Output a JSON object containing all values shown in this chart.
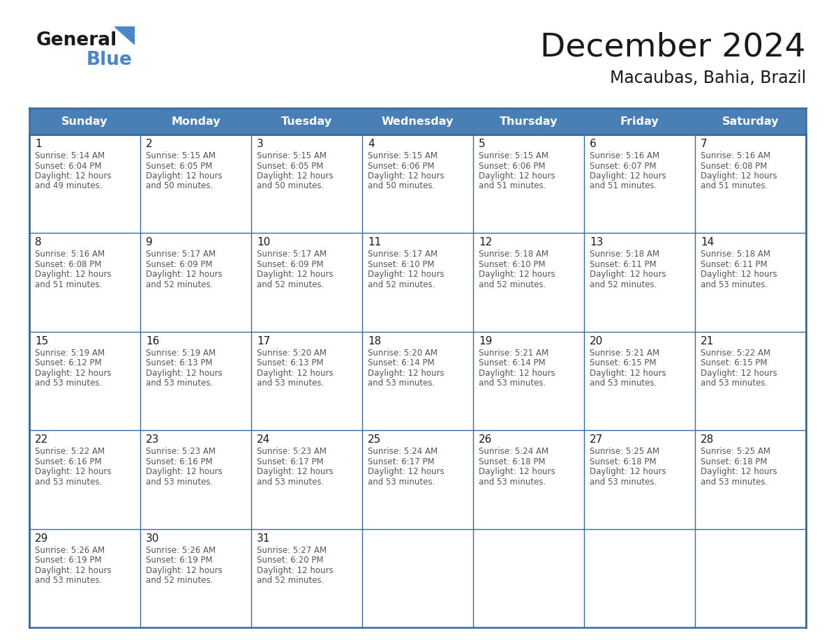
{
  "title": "December 2024",
  "subtitle": "Macaubas, Bahia, Brazil",
  "header_bg": "#4a7fb5",
  "header_text": "#ffffff",
  "grid_color": "#3a6a9a",
  "text_color": "#333333",
  "day_names": [
    "Sunday",
    "Monday",
    "Tuesday",
    "Wednesday",
    "Thursday",
    "Friday",
    "Saturday"
  ],
  "weeks": [
    [
      {
        "day": "1",
        "sunrise": "5:14 AM",
        "sunset": "6:04 PM",
        "daylight_l1": "12 hours",
        "daylight_l2": "and 49 minutes."
      },
      {
        "day": "2",
        "sunrise": "5:15 AM",
        "sunset": "6:05 PM",
        "daylight_l1": "12 hours",
        "daylight_l2": "and 50 minutes."
      },
      {
        "day": "3",
        "sunrise": "5:15 AM",
        "sunset": "6:05 PM",
        "daylight_l1": "12 hours",
        "daylight_l2": "and 50 minutes."
      },
      {
        "day": "4",
        "sunrise": "5:15 AM",
        "sunset": "6:06 PM",
        "daylight_l1": "12 hours",
        "daylight_l2": "and 50 minutes."
      },
      {
        "day": "5",
        "sunrise": "5:15 AM",
        "sunset": "6:06 PM",
        "daylight_l1": "12 hours",
        "daylight_l2": "and 51 minutes."
      },
      {
        "day": "6",
        "sunrise": "5:16 AM",
        "sunset": "6:07 PM",
        "daylight_l1": "12 hours",
        "daylight_l2": "and 51 minutes."
      },
      {
        "day": "7",
        "sunrise": "5:16 AM",
        "sunset": "6:08 PM",
        "daylight_l1": "12 hours",
        "daylight_l2": "and 51 minutes."
      }
    ],
    [
      {
        "day": "8",
        "sunrise": "5:16 AM",
        "sunset": "6:08 PM",
        "daylight_l1": "12 hours",
        "daylight_l2": "and 51 minutes."
      },
      {
        "day": "9",
        "sunrise": "5:17 AM",
        "sunset": "6:09 PM",
        "daylight_l1": "12 hours",
        "daylight_l2": "and 52 minutes."
      },
      {
        "day": "10",
        "sunrise": "5:17 AM",
        "sunset": "6:09 PM",
        "daylight_l1": "12 hours",
        "daylight_l2": "and 52 minutes."
      },
      {
        "day": "11",
        "sunrise": "5:17 AM",
        "sunset": "6:10 PM",
        "daylight_l1": "12 hours",
        "daylight_l2": "and 52 minutes."
      },
      {
        "day": "12",
        "sunrise": "5:18 AM",
        "sunset": "6:10 PM",
        "daylight_l1": "12 hours",
        "daylight_l2": "and 52 minutes."
      },
      {
        "day": "13",
        "sunrise": "5:18 AM",
        "sunset": "6:11 PM",
        "daylight_l1": "12 hours",
        "daylight_l2": "and 52 minutes."
      },
      {
        "day": "14",
        "sunrise": "5:18 AM",
        "sunset": "6:11 PM",
        "daylight_l1": "12 hours",
        "daylight_l2": "and 53 minutes."
      }
    ],
    [
      {
        "day": "15",
        "sunrise": "5:19 AM",
        "sunset": "6:12 PM",
        "daylight_l1": "12 hours",
        "daylight_l2": "and 53 minutes."
      },
      {
        "day": "16",
        "sunrise": "5:19 AM",
        "sunset": "6:13 PM",
        "daylight_l1": "12 hours",
        "daylight_l2": "and 53 minutes."
      },
      {
        "day": "17",
        "sunrise": "5:20 AM",
        "sunset": "6:13 PM",
        "daylight_l1": "12 hours",
        "daylight_l2": "and 53 minutes."
      },
      {
        "day": "18",
        "sunrise": "5:20 AM",
        "sunset": "6:14 PM",
        "daylight_l1": "12 hours",
        "daylight_l2": "and 53 minutes."
      },
      {
        "day": "19",
        "sunrise": "5:21 AM",
        "sunset": "6:14 PM",
        "daylight_l1": "12 hours",
        "daylight_l2": "and 53 minutes."
      },
      {
        "day": "20",
        "sunrise": "5:21 AM",
        "sunset": "6:15 PM",
        "daylight_l1": "12 hours",
        "daylight_l2": "and 53 minutes."
      },
      {
        "day": "21",
        "sunrise": "5:22 AM",
        "sunset": "6:15 PM",
        "daylight_l1": "12 hours",
        "daylight_l2": "and 53 minutes."
      }
    ],
    [
      {
        "day": "22",
        "sunrise": "5:22 AM",
        "sunset": "6:16 PM",
        "daylight_l1": "12 hours",
        "daylight_l2": "and 53 minutes."
      },
      {
        "day": "23",
        "sunrise": "5:23 AM",
        "sunset": "6:16 PM",
        "daylight_l1": "12 hours",
        "daylight_l2": "and 53 minutes."
      },
      {
        "day": "24",
        "sunrise": "5:23 AM",
        "sunset": "6:17 PM",
        "daylight_l1": "12 hours",
        "daylight_l2": "and 53 minutes."
      },
      {
        "day": "25",
        "sunrise": "5:24 AM",
        "sunset": "6:17 PM",
        "daylight_l1": "12 hours",
        "daylight_l2": "and 53 minutes."
      },
      {
        "day": "26",
        "sunrise": "5:24 AM",
        "sunset": "6:18 PM",
        "daylight_l1": "12 hours",
        "daylight_l2": "and 53 minutes."
      },
      {
        "day": "27",
        "sunrise": "5:25 AM",
        "sunset": "6:18 PM",
        "daylight_l1": "12 hours",
        "daylight_l2": "and 53 minutes."
      },
      {
        "day": "28",
        "sunrise": "5:25 AM",
        "sunset": "6:18 PM",
        "daylight_l1": "12 hours",
        "daylight_l2": "and 53 minutes."
      }
    ],
    [
      {
        "day": "29",
        "sunrise": "5:26 AM",
        "sunset": "6:19 PM",
        "daylight_l1": "12 hours",
        "daylight_l2": "and 53 minutes."
      },
      {
        "day": "30",
        "sunrise": "5:26 AM",
        "sunset": "6:19 PM",
        "daylight_l1": "12 hours",
        "daylight_l2": "and 52 minutes."
      },
      {
        "day": "31",
        "sunrise": "5:27 AM",
        "sunset": "6:20 PM",
        "daylight_l1": "12 hours",
        "daylight_l2": "and 52 minutes."
      },
      null,
      null,
      null,
      null
    ]
  ]
}
